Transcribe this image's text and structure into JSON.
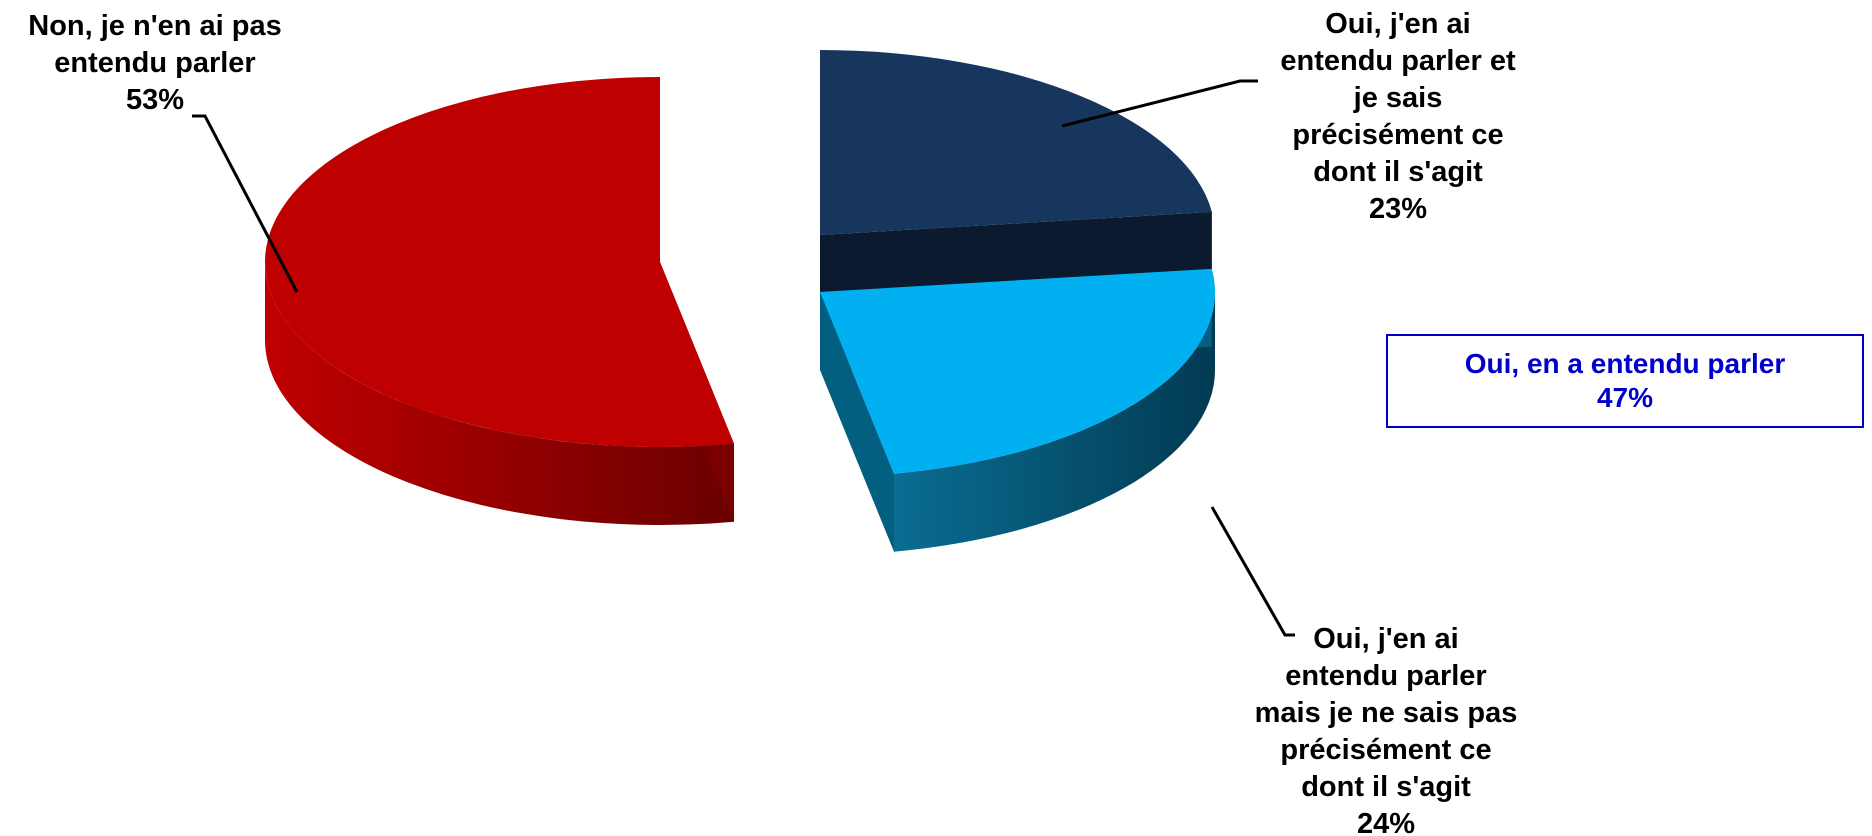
{
  "chart_data": {
    "type": "pie",
    "title": "",
    "slices": [
      {
        "label_lines": [
          "Non, je n'en ai pas",
          "entendu parler"
        ],
        "value": 53,
        "value_label": "53%",
        "color": "#bf0000",
        "side_color": "#7a0000"
      },
      {
        "label_lines": [
          "Oui, j'en ai",
          "entendu parler et",
          "je sais",
          "précisément ce",
          "dont il s'agit"
        ],
        "value": 23,
        "value_label": "23%",
        "color": "#17365d",
        "side_color": "#0b1a2e"
      },
      {
        "label_lines": [
          "Oui, j'en ai",
          "entendu parler",
          "mais je ne sais pas",
          "précisément ce",
          "dont il s'agit"
        ],
        "value": 24,
        "value_label": "24%",
        "color": "#00b0f0",
        "side_color": "#035f80"
      }
    ],
    "summary": {
      "label": "Oui, en a entendu parler",
      "value_label": "47%",
      "value": 47,
      "color": "#0000cc"
    }
  }
}
